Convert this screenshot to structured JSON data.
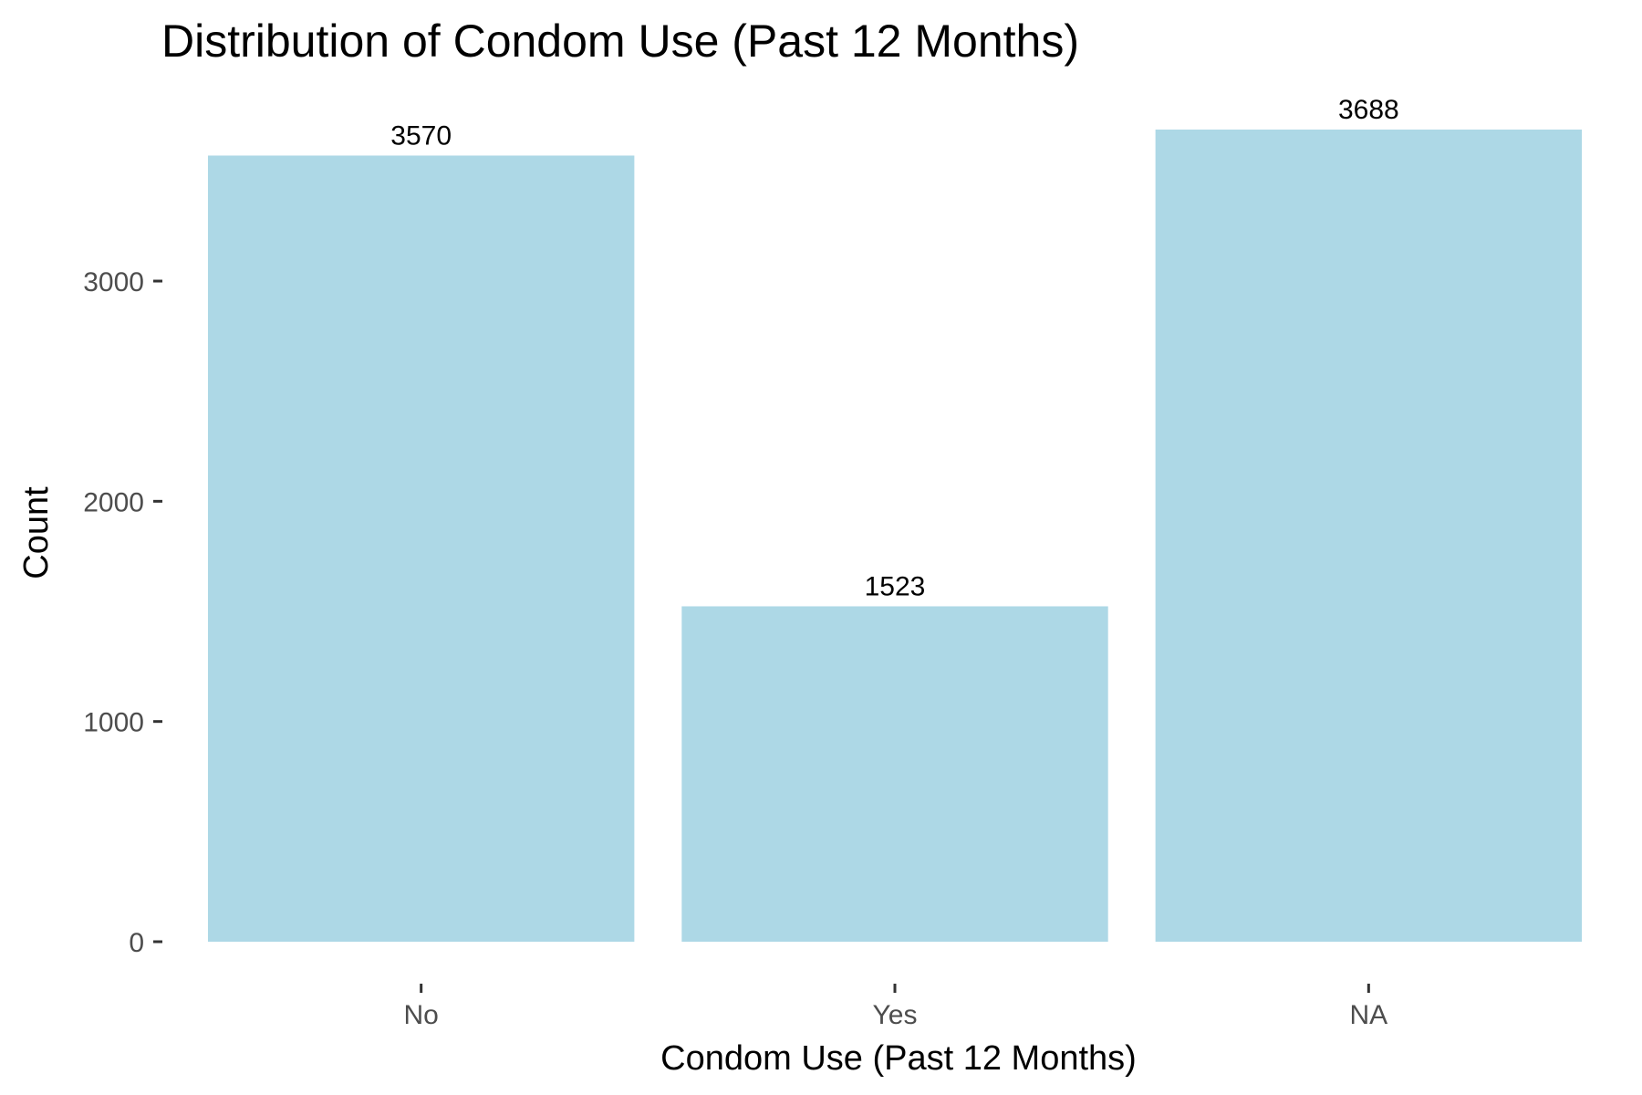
{
  "chart_data": {
    "type": "bar",
    "title": "Distribution of Condom Use (Past 12 Months)",
    "xlabel": "Condom Use (Past 12 Months)",
    "ylabel": "Count",
    "categories": [
      "No",
      "Yes",
      "NA"
    ],
    "values": [
      3570,
      1523,
      3688
    ],
    "data_labels": [
      "3570",
      "1523",
      "3688"
    ],
    "y_ticks": [
      0,
      1000,
      2000,
      3000
    ],
    "y_tick_labels": [
      "0",
      "1000",
      "2000",
      "3000"
    ],
    "ylim": [
      0,
      3688
    ],
    "bar_color": "#add8e6",
    "grid": false,
    "legend": "none"
  }
}
